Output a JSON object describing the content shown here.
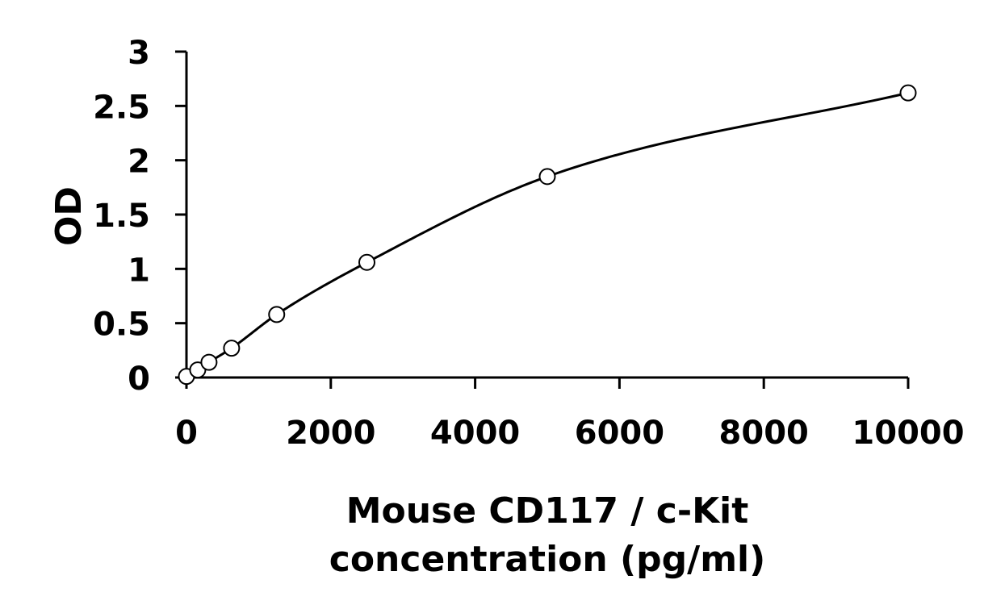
{
  "chart_data": {
    "type": "scatter",
    "title": "",
    "xlabel": [
      "Mouse CD117 / c-Kit",
      "concentration (pg/ml)"
    ],
    "ylabel": "OD",
    "xlim": [
      0,
      10000
    ],
    "ylim": [
      0,
      3
    ],
    "xticks": [
      0,
      2000,
      4000,
      6000,
      8000,
      10000
    ],
    "yticks": [
      0,
      0.5,
      1,
      1.5,
      2,
      2.5,
      3
    ],
    "xtick_labels": [
      "0",
      "2000",
      "4000",
      "6000",
      "8000",
      "10000"
    ],
    "ytick_labels": [
      "0",
      "0.5",
      "1",
      "1.5",
      "2",
      "2.5",
      "3"
    ],
    "grid": false,
    "legend": "none",
    "series": [
      {
        "marker": "open-circle",
        "x": [
          0,
          156,
          312,
          625,
          1250,
          2500,
          5000,
          10000
        ],
        "y": [
          0.01,
          0.07,
          0.14,
          0.27,
          0.58,
          1.06,
          1.85,
          2.62
        ]
      }
    ],
    "fit_curve": "smooth",
    "colors": {
      "axis": "#000000",
      "marker_fill": "#ffffff",
      "line": "#000000"
    }
  }
}
